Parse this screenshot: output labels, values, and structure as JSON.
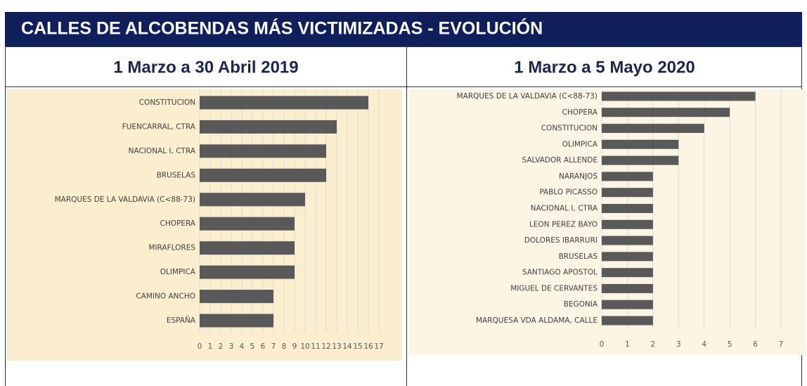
{
  "title": "CALLES DE ALCOBENDAS MÁS VICTIMIZADAS - EVOLUCIÓN",
  "chart_data": [
    {
      "type": "bar",
      "orientation": "horizontal",
      "title": "1 Marzo a 30 Abril 2019",
      "categories": [
        "CONSTITUCION",
        "FUENCARRAL, CTRA",
        "NACIONAL I, CTRA",
        "BRUSELAS",
        "MARQUES DE LA VALDAVIA (C<88-73)",
        "CHOPERA",
        "MIRAFLORES",
        "OLIMPICA",
        "CAMINO ANCHO",
        "ESPAÑA"
      ],
      "values": [
        16,
        13,
        12,
        12,
        10,
        9,
        9,
        9,
        7,
        7
      ],
      "color": "#595959",
      "background": "#fbeecf",
      "xlim": [
        0,
        17
      ],
      "xticks": [
        0,
        1,
        2,
        3,
        4,
        5,
        6,
        7,
        8,
        9,
        10,
        11,
        12,
        13,
        14,
        15,
        16,
        17
      ],
      "grid": true
    },
    {
      "type": "bar",
      "orientation": "horizontal",
      "title": "1 Marzo a 5 Mayo 2020",
      "categories": [
        "MARQUES DE LA VALDAVIA (C<88-73)",
        "CHOPERA",
        "CONSTITUCION",
        "OLIMPICA",
        "SALVADOR ALLENDE",
        "NARANJOS",
        "PABLO PICASSO",
        "NACIONAL I, CTRA",
        "LEON PEREZ BAYO",
        "DOLORES IBARRURI",
        "BRUSELAS",
        "SANTIAGO APOSTOL",
        "MIGUEL DE CERVANTES",
        "BEGONIA",
        "MARQUESA VDA ALDAMA, CALLE"
      ],
      "values": [
        6,
        5,
        4,
        3,
        3,
        2,
        2,
        2,
        2,
        2,
        2,
        2,
        2,
        2,
        2
      ],
      "color": "#595959",
      "background": "#fdf5e4",
      "xlim": [
        0,
        7
      ],
      "xticks": [
        0,
        1,
        2,
        3,
        4,
        5,
        6,
        7
      ],
      "grid": true
    }
  ]
}
